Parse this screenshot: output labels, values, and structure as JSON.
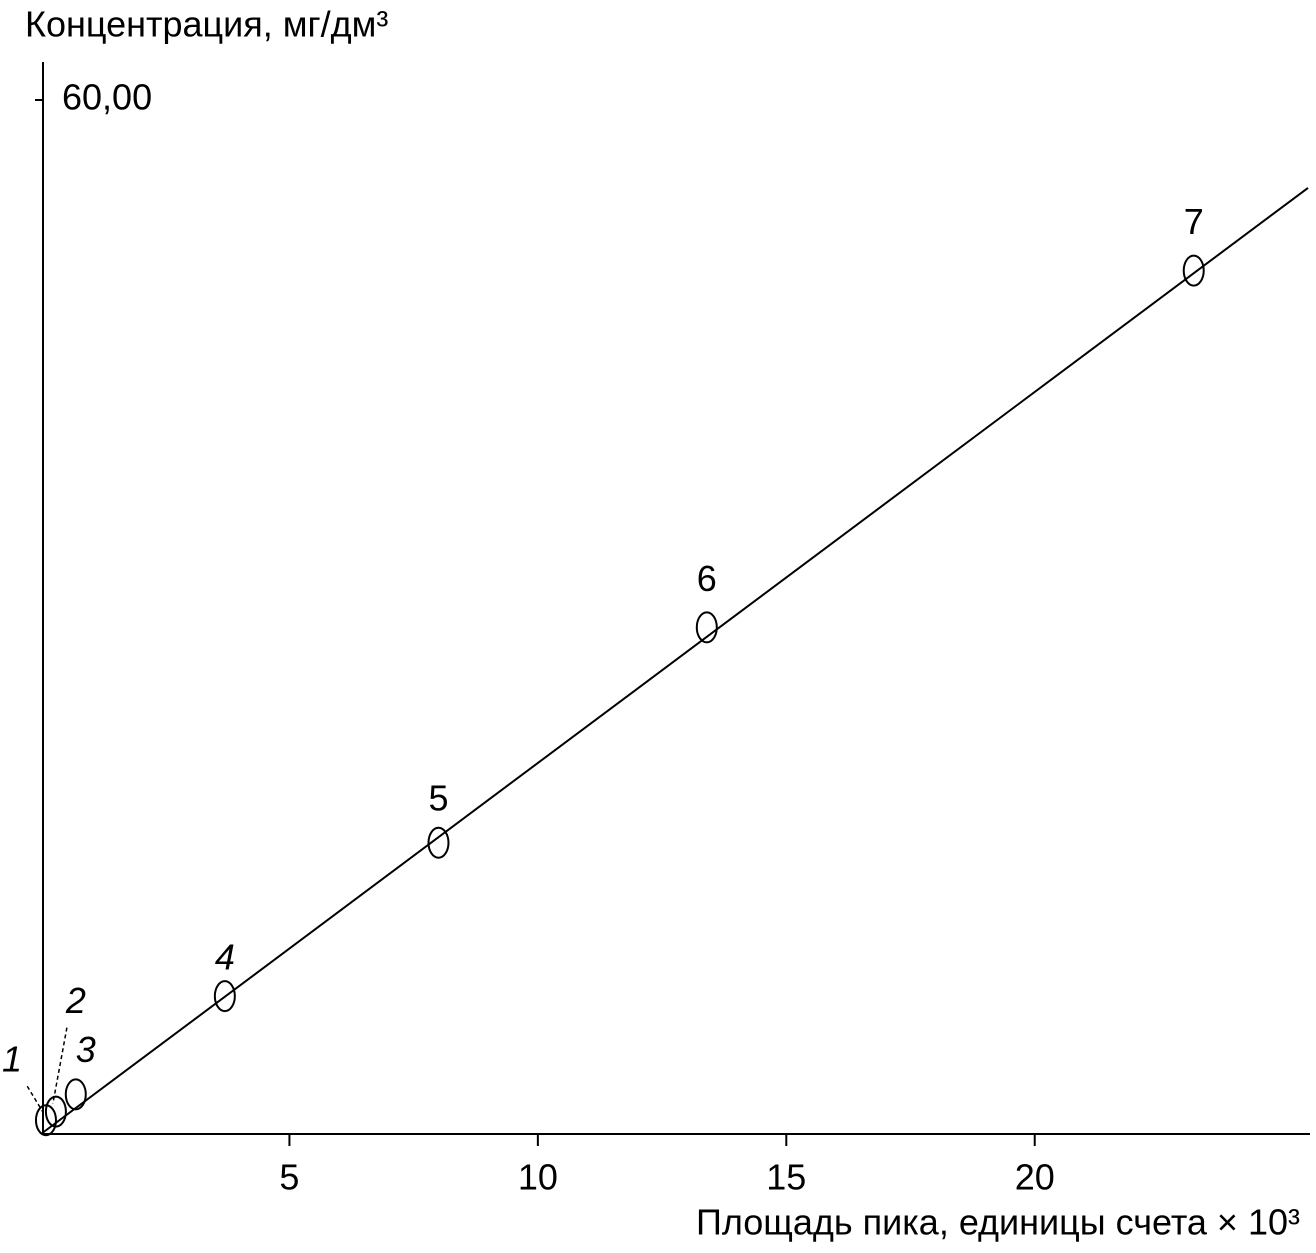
{
  "chart_data": {
    "type": "scatter",
    "y_label": "Концентрация, мг/дм³",
    "x_label": "Площадь пика, единицы счета × 10³",
    "x": [
      0.1,
      0.3,
      0.7,
      3.7,
      8.0,
      13.4,
      23.2
    ],
    "values": [
      0.8,
      1.3,
      2.3,
      8.0,
      16.9,
      29.4,
      50.1
    ],
    "point_labels": [
      "1",
      "2",
      "3",
      "4",
      "5",
      "6",
      "7"
    ],
    "fit": {
      "x": [
        0,
        25.5
      ],
      "values": [
        0,
        54.9
      ]
    },
    "color": "#000000",
    "xlim": [
      0,
      25.5
    ],
    "ylim": [
      0,
      60
    ],
    "xticks": [
      5,
      10,
      15,
      20
    ],
    "yticks": [
      {
        "value": 60,
        "label": "60,00"
      }
    ],
    "grid": false
  }
}
